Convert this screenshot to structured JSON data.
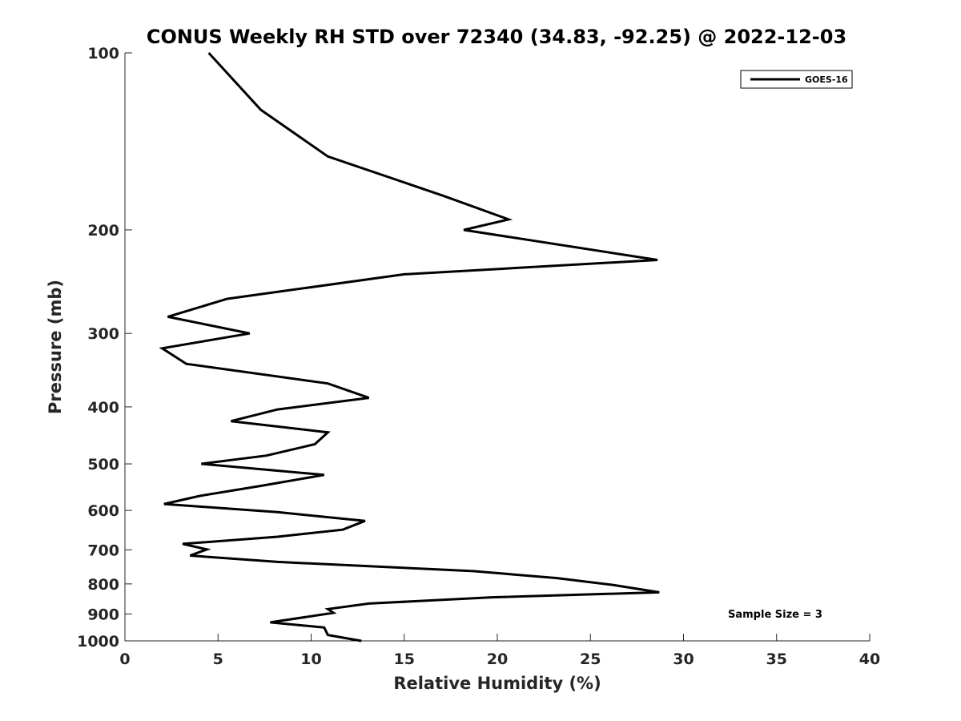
{
  "chart_data": {
    "type": "line",
    "title": "CONUS Weekly RH STD over 72340 (34.83, -92.25) @ 2022-12-03",
    "xlabel": "Relative Humidity (%)",
    "ylabel": "Pressure (mb)",
    "xlim": [
      0,
      40
    ],
    "ylim": [
      100,
      1000
    ],
    "y_scale": "log",
    "y_reversed": true,
    "grid": false,
    "legend_position": "top-right",
    "x_ticks": [
      "0",
      "5",
      "10",
      "15",
      "20",
      "25",
      "30",
      "35",
      "40"
    ],
    "y_ticks": [
      "100",
      "200",
      "300",
      "400",
      "500",
      "600",
      "700",
      "800",
      "900",
      "1000"
    ],
    "series": [
      {
        "name": "GOES-16",
        "color": "#000000",
        "points": [
          [
            4.5,
            100
          ],
          [
            7.3,
            125
          ],
          [
            10.9,
            150
          ],
          [
            17.1,
            175
          ],
          [
            20.6,
            192
          ],
          [
            18.2,
            200
          ],
          [
            28.6,
            225
          ],
          [
            15.0,
            238
          ],
          [
            5.5,
            262
          ],
          [
            2.3,
            281
          ],
          [
            6.7,
            300
          ],
          [
            2.0,
            318
          ],
          [
            3.3,
            338
          ],
          [
            10.9,
            365
          ],
          [
            13.1,
            386
          ],
          [
            8.2,
            404
          ],
          [
            5.7,
            423
          ],
          [
            10.9,
            442
          ],
          [
            10.2,
            463
          ],
          [
            7.6,
            484
          ],
          [
            4.1,
            500
          ],
          [
            10.7,
            522
          ],
          [
            7.3,
            545
          ],
          [
            4.0,
            567
          ],
          [
            2.1,
            585
          ],
          [
            8.2,
            604
          ],
          [
            12.9,
            625
          ],
          [
            11.7,
            647
          ],
          [
            8.2,
            665
          ],
          [
            3.1,
            684
          ],
          [
            4.4,
            699
          ],
          [
            3.5,
            716
          ],
          [
            8.2,
            734
          ],
          [
            18.7,
            761
          ],
          [
            23.2,
            782
          ],
          [
            26.2,
            803
          ],
          [
            28.7,
            827
          ],
          [
            19.7,
            843
          ],
          [
            13.1,
            864
          ],
          [
            10.9,
            883
          ],
          [
            11.2,
            896
          ],
          [
            7.8,
            930
          ],
          [
            10.7,
            949
          ],
          [
            10.9,
            977
          ],
          [
            12.7,
            1000
          ]
        ]
      }
    ],
    "annotations": [
      "Sample Size = 3"
    ]
  }
}
